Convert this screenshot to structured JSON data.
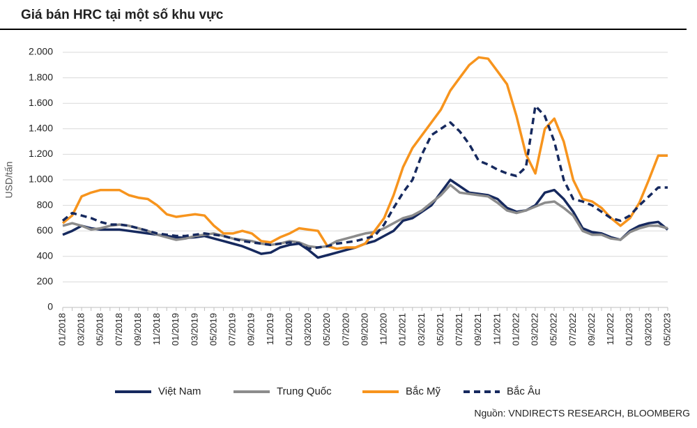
{
  "chart_data": {
    "type": "line",
    "title": "Giá bán HRC tại một số khu vực",
    "y_label": "USD/tấn",
    "source": "Nguồn: VNDIRECTS RESEARCH, BLOOMBERG",
    "categories": [
      "01/2018",
      null,
      "03/2018",
      null,
      "05/2018",
      null,
      "07/2018",
      null,
      "09/2018",
      null,
      "11/2018",
      null,
      "01/2019",
      null,
      "03/2019",
      null,
      "05/2019",
      null,
      "07/2019",
      null,
      "09/2019",
      null,
      "11/2019",
      null,
      "01/2020",
      null,
      "03/2020",
      null,
      "05/2020",
      null,
      "07/2020",
      null,
      "09/2020",
      null,
      "11/2020",
      null,
      "01/2021",
      null,
      "03/2021",
      null,
      "05/2021",
      null,
      "07/2021",
      null,
      "09/2021",
      null,
      "11/2021",
      null,
      "01/2022",
      null,
      "03/2022",
      null,
      "05/2022",
      null,
      "07/2022",
      null,
      "09/2022",
      null,
      "11/2022",
      null,
      "01/2023",
      null,
      "03/2023",
      null,
      "05/2023"
    ],
    "series": [
      {
        "name": "Việt Nam",
        "color": "#16295e",
        "line_style": "solid",
        "values": [
          570,
          600,
          640,
          620,
          610,
          610,
          610,
          600,
          590,
          580,
          570,
          560,
          550,
          545,
          550,
          560,
          540,
          520,
          500,
          480,
          450,
          420,
          430,
          470,
          490,
          500,
          450,
          390,
          410,
          430,
          450,
          470,
          500,
          520,
          560,
          600,
          680,
          700,
          750,
          800,
          900,
          1000,
          950,
          900,
          890,
          880,
          850,
          780,
          750,
          760,
          800,
          900,
          920,
          850,
          750,
          620,
          590,
          580,
          550,
          530,
          600,
          640,
          660,
          670,
          610
        ]
      },
      {
        "name": "Trung Quốc",
        "color": "#8c8c8c",
        "line_style": "solid",
        "values": [
          640,
          660,
          640,
          610,
          620,
          640,
          650,
          640,
          620,
          600,
          570,
          550,
          530,
          540,
          560,
          570,
          580,
          560,
          540,
          530,
          520,
          500,
          490,
          500,
          520,
          510,
          480,
          470,
          480,
          520,
          540,
          560,
          580,
          590,
          620,
          660,
          700,
          720,
          760,
          820,
          880,
          960,
          900,
          890,
          880,
          870,
          820,
          760,
          740,
          760,
          790,
          820,
          830,
          780,
          720,
          600,
          570,
          570,
          540,
          530,
          590,
          620,
          640,
          640,
          620
        ]
      },
      {
        "name": "Bắc Mỹ",
        "color": "#f7941d",
        "line_style": "solid",
        "values": [
          660,
          720,
          870,
          900,
          920,
          920,
          920,
          880,
          860,
          850,
          800,
          730,
          710,
          720,
          730,
          720,
          640,
          580,
          580,
          600,
          580,
          520,
          510,
          550,
          580,
          620,
          610,
          600,
          480,
          460,
          470,
          470,
          500,
          600,
          700,
          880,
          1100,
          1250,
          1350,
          1450,
          1550,
          1700,
          1800,
          1900,
          1960,
          1950,
          1850,
          1750,
          1500,
          1200,
          1050,
          1400,
          1480,
          1300,
          1000,
          850,
          830,
          780,
          700,
          640,
          700,
          820,
          1000,
          1190,
          1190
        ]
      },
      {
        "name": "Bắc Âu",
        "color": "#16295e",
        "line_style": "dashed",
        "values": [
          680,
          740,
          720,
          700,
          670,
          650,
          650,
          640,
          620,
          600,
          580,
          570,
          560,
          560,
          570,
          580,
          570,
          560,
          540,
          520,
          510,
          500,
          490,
          500,
          510,
          500,
          460,
          470,
          480,
          500,
          510,
          520,
          540,
          560,
          650,
          780,
          900,
          1000,
          1200,
          1350,
          1400,
          1450,
          1380,
          1280,
          1150,
          1120,
          1080,
          1050,
          1030,
          1100,
          1580,
          1500,
          1300,
          1000,
          850,
          830,
          800,
          750,
          700,
          680,
          720,
          800,
          870,
          940,
          940
        ]
      }
    ],
    "ylim": [
      0,
      2000
    ],
    "yticks": [
      0,
      200,
      400,
      600,
      800,
      {
        "value": 1000,
        "label": "1.000"
      },
      {
        "value": 1200,
        "label": "1.200"
      },
      {
        "value": 1400,
        "label": "1.400"
      },
      {
        "value": 1600,
        "label": "1.600"
      },
      {
        "value": 1800,
        "label": "1.800"
      },
      {
        "value": 2000,
        "label": "2.000"
      }
    ],
    "grid": true
  }
}
